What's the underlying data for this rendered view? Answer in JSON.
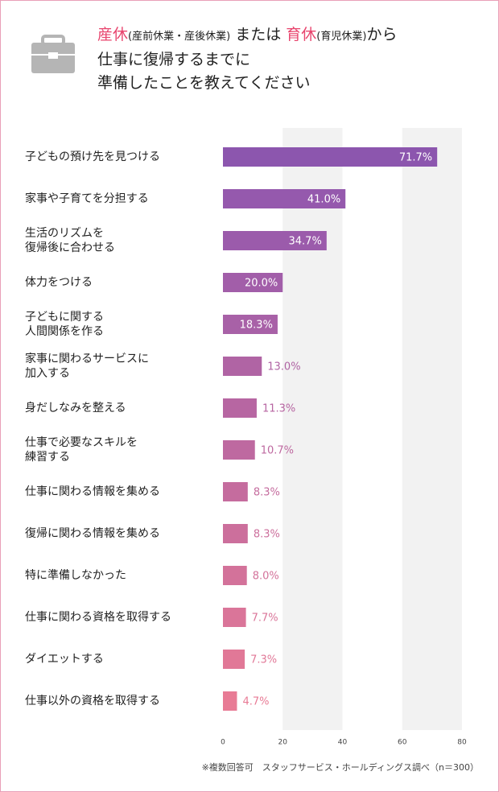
{
  "chart_data": {
    "type": "bar",
    "title_parts": [
      "産休",
      "(産前休業・産後休業)",
      "または",
      "育休",
      "(育児休業)",
      "から",
      "仕事に復帰するまでに",
      "準備したことを教えてください"
    ],
    "categories": [
      "子どもの預け先を見つける",
      "家事や子育てを分担する",
      "生活のリズムを\n復帰後に合わせる",
      "体力をつける",
      "子どもに関する\n人間関係を作る",
      "家事に関わるサービスに\n加入する",
      "身だしなみを整える",
      "仕事で必要なスキルを\n練習する",
      "仕事に関わる情報を集める",
      "復帰に関わる情報を集める",
      "特に準備しなかった",
      "仕事に関わる資格を取得する",
      "ダイエットする",
      "仕事以外の資格を取得する"
    ],
    "values": [
      71.7,
      41.0,
      34.7,
      20.0,
      18.3,
      13.0,
      11.3,
      10.7,
      8.3,
      8.3,
      8.0,
      7.7,
      7.3,
      4.7
    ],
    "value_labels": [
      "71.7%",
      "41.0%",
      "34.7%",
      "20.0%",
      "18.3%",
      "13.0%",
      "11.3%",
      "10.7%",
      "8.3%",
      "8.3%",
      "8.0%",
      "7.7%",
      "7.3%",
      "4.7%"
    ],
    "colors": [
      "#8c56ae",
      "#9559ad",
      "#9b5bab",
      "#a25ea9",
      "#a861a7",
      "#b064a4",
      "#b766a2",
      "#be69a0",
      "#c56c9e",
      "#cc6f9c",
      "#d3729a",
      "#da7599",
      "#e17897",
      "#e87b95"
    ],
    "xlim": [
      0,
      80
    ],
    "xticks": [
      0,
      20,
      40,
      60,
      80
    ],
    "footnote": "※複数回答可　スタッフサービス・ホールディングス調べ（n＝300）"
  }
}
